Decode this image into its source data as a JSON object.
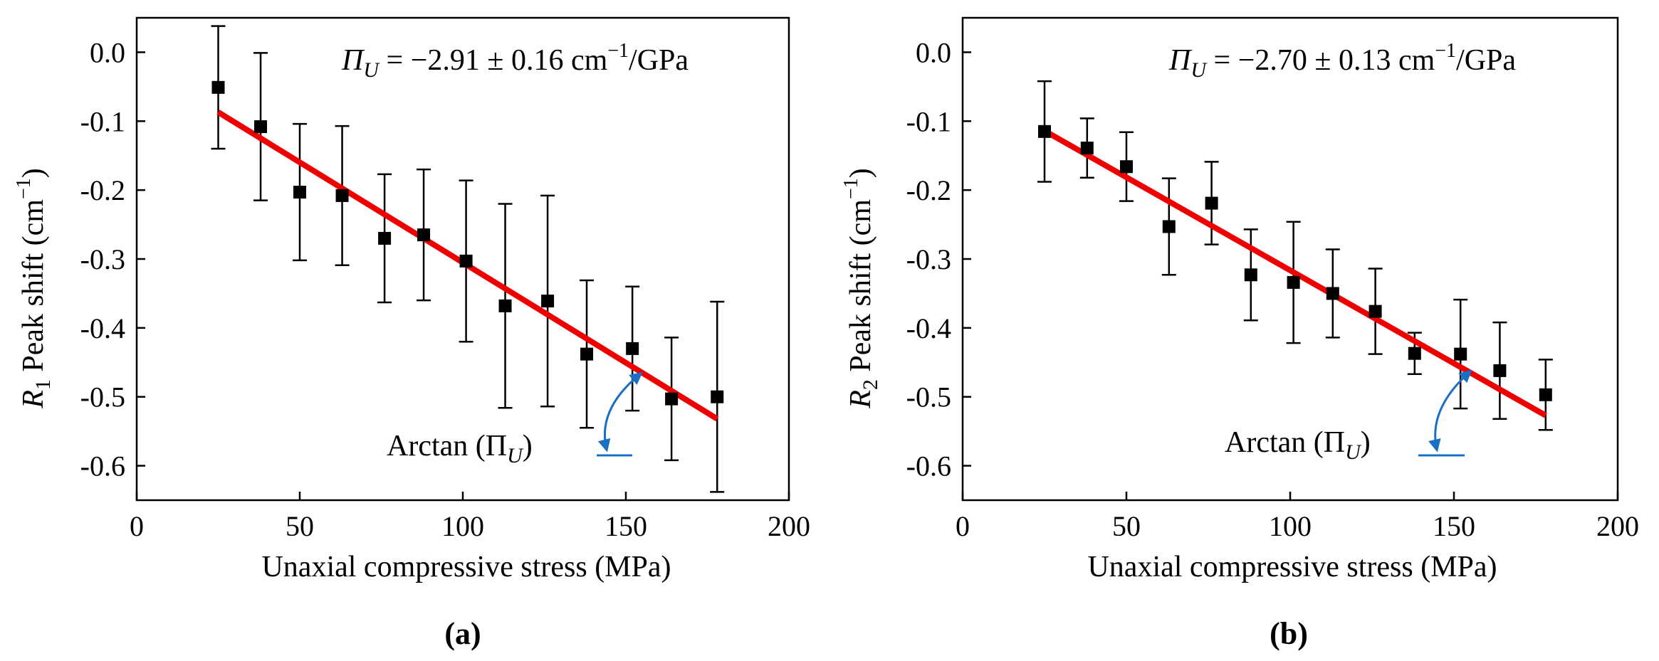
{
  "chart_data": [
    {
      "type": "scatter",
      "panel_label": "(a)",
      "xlabel": "Unaxial compressive stress (MPa)",
      "ylabel": {
        "symbol": "R",
        "sub": "1",
        "text": " Peak shift (cm",
        "sup": "−1",
        "close": ")"
      },
      "xlim": [
        0,
        200
      ],
      "ylim": [
        -0.65,
        0.05
      ],
      "xticks": [
        0,
        50,
        100,
        150,
        200
      ],
      "xtick_labels": [
        "0",
        "50",
        "100",
        "150",
        "200"
      ],
      "yticks": [
        0.0,
        -0.1,
        -0.2,
        -0.3,
        -0.4,
        -0.5,
        -0.6
      ],
      "ytick_labels": [
        "0.0",
        "-0.1",
        "-0.2",
        "-0.3",
        "-0.4",
        "-0.5",
        "-0.6"
      ],
      "series": [
        {
          "name": "Peak shift",
          "marker": "square",
          "color": "#000000",
          "x": [
            25,
            38,
            50,
            63,
            76,
            88,
            101,
            113,
            126,
            138,
            152,
            164,
            178
          ],
          "y": [
            -0.051,
            -0.108,
            -0.203,
            -0.208,
            -0.27,
            -0.265,
            -0.303,
            -0.368,
            -0.361,
            -0.438,
            -0.43,
            -0.503,
            -0.5
          ],
          "yerr": [
            0.089,
            0.107,
            0.099,
            0.101,
            0.093,
            0.095,
            0.117,
            0.148,
            0.153,
            0.107,
            0.09,
            0.089,
            0.138
          ]
        },
        {
          "name": "Linear fit",
          "type": "line",
          "color": "#ee0000",
          "x": [
            25,
            178
          ],
          "y": [
            -0.087,
            -0.532
          ]
        }
      ],
      "annotations": {
        "slope": {
          "symbol": "Π",
          "sub": "U",
          "text": " = −2.91 ± 0.16 cm",
          "sup": "−1",
          "unit": "/GPa"
        },
        "arctan": {
          "text": "Arctan (Π",
          "sub": "U",
          "close": ")"
        },
        "arrow_color": "#1a6fc4"
      }
    },
    {
      "type": "scatter",
      "panel_label": "(b)",
      "xlabel": "Unaxial compressive stress (MPa)",
      "ylabel": {
        "symbol": "R",
        "sub": "2",
        "text": " Peak shift (cm",
        "sup": "−1",
        "close": ")"
      },
      "xlim": [
        0,
        200
      ],
      "ylim": [
        -0.65,
        0.05
      ],
      "xticks": [
        0,
        50,
        100,
        150,
        200
      ],
      "xtick_labels": [
        "0",
        "50",
        "100",
        "150",
        "200"
      ],
      "yticks": [
        0.0,
        -0.1,
        -0.2,
        -0.3,
        -0.4,
        -0.5,
        -0.6
      ],
      "ytick_labels": [
        "0.0",
        "-0.1",
        "-0.2",
        "-0.3",
        "-0.4",
        "-0.5",
        "-0.6"
      ],
      "series": [
        {
          "name": "Peak shift",
          "marker": "square",
          "color": "#000000",
          "x": [
            25,
            38,
            50,
            63,
            76,
            88,
            101,
            113,
            126,
            138,
            152,
            164,
            178
          ],
          "y": [
            -0.115,
            -0.139,
            -0.166,
            -0.253,
            -0.219,
            -0.323,
            -0.334,
            -0.35,
            -0.376,
            -0.437,
            -0.438,
            -0.462,
            -0.497
          ],
          "yerr": [
            0.073,
            0.043,
            0.05,
            0.07,
            0.06,
            0.066,
            0.088,
            0.064,
            0.062,
            0.03,
            0.079,
            0.07,
            0.051
          ]
        },
        {
          "name": "Linear fit",
          "type": "line",
          "color": "#ee0000",
          "x": [
            25,
            178
          ],
          "y": [
            -0.114,
            -0.527
          ]
        }
      ],
      "annotations": {
        "slope": {
          "symbol": "Π",
          "sub": "U",
          "text": " = −2.70 ± 0.13 cm",
          "sup": "−1",
          "unit": "/GPa"
        },
        "arctan": {
          "text": "Arctan (Π",
          "sub": "U",
          "close": ")"
        },
        "arrow_color": "#1a6fc4"
      }
    }
  ]
}
